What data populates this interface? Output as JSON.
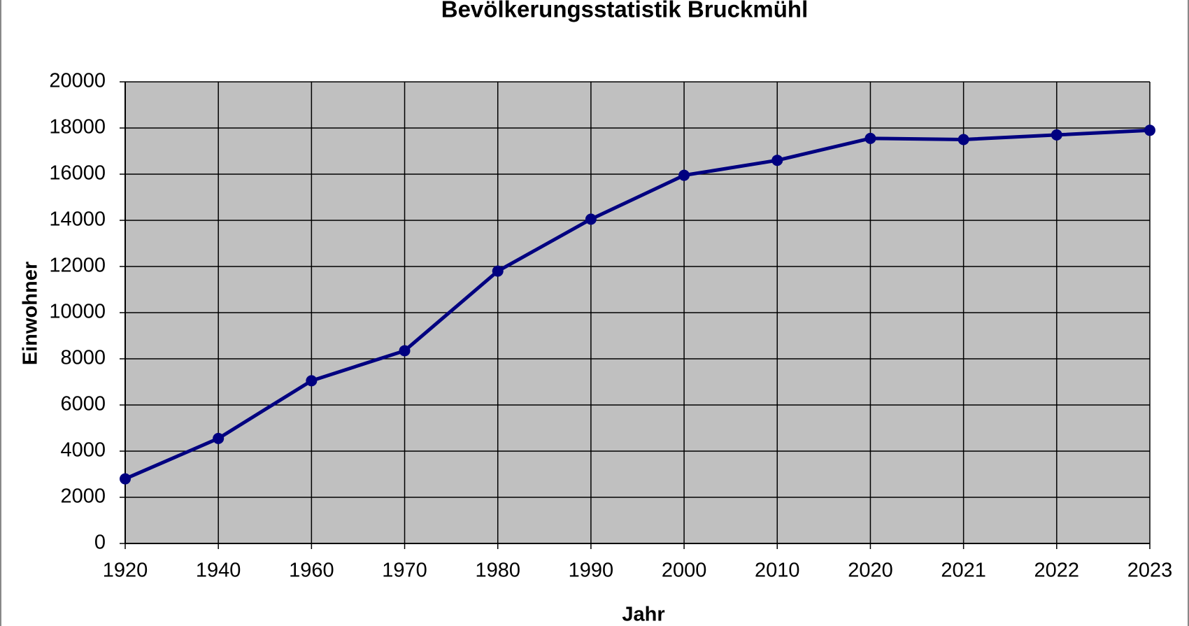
{
  "chart_data": {
    "type": "line",
    "title": "Bevölkerungsstatistik Bruckmühl",
    "x_label": "Jahr",
    "y_label": "Einwohner",
    "categories": [
      "1920",
      "1940",
      "1960",
      "1970",
      "1980",
      "1990",
      "2000",
      "2010",
      "2020",
      "2021",
      "2022",
      "2023"
    ],
    "series": [
      {
        "name": "Einwohner",
        "color": "#000080",
        "values": [
          2800,
          4550,
          7050,
          8350,
          11800,
          14050,
          15950,
          16600,
          17550,
          17500,
          17700,
          17900
        ]
      }
    ],
    "ylim": [
      0,
      20000
    ],
    "yticks": [
      0,
      2000,
      4000,
      6000,
      8000,
      10000,
      12000,
      14000,
      16000,
      18000,
      20000
    ],
    "grid": true
  }
}
